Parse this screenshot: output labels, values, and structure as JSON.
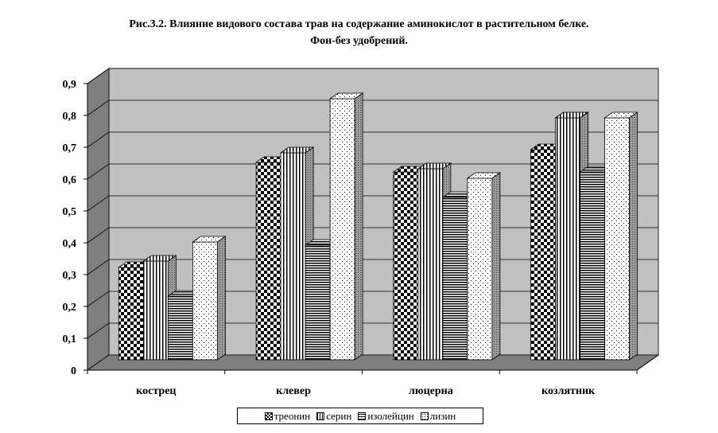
{
  "chart_data": {
    "type": "bar",
    "title_line1": "Рис.3.2. Влияние видового состава трав на содержание аминокислот в растительном белке.",
    "title_line2": "Фон-без удобрений.",
    "categories": [
      "кострец",
      "клевер",
      "люцерна",
      "козлятник"
    ],
    "series": [
      {
        "name": "треонин",
        "pattern": "checker",
        "values": [
          0.29,
          0.62,
          0.59,
          0.66
        ]
      },
      {
        "name": "серин",
        "pattern": "vstripes",
        "values": [
          0.31,
          0.65,
          0.6,
          0.76
        ]
      },
      {
        "name": "изолейцин",
        "pattern": "hstripes",
        "values": [
          0.2,
          0.36,
          0.51,
          0.59
        ]
      },
      {
        "name": "лизин",
        "pattern": "dots",
        "values": [
          0.37,
          0.82,
          0.57,
          0.76
        ]
      }
    ],
    "ylim": [
      0,
      0.9
    ],
    "yticks": [
      "0",
      "0,1",
      "0,2",
      "0,3",
      "0,4",
      "0,5",
      "0,6",
      "0,7",
      "0,8",
      "0,9"
    ],
    "grid": true,
    "legend_position": "bottom"
  }
}
